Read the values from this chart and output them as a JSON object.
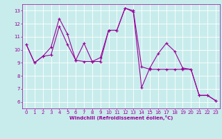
{
  "title": "",
  "xlabel": "Windchill (Refroidissement éolien,°C)",
  "ylabel": "",
  "background_color": "#c8ecec",
  "grid_color": "#b0d8d8",
  "line_color": "#990099",
  "marker": "+",
  "linewidth": 0.8,
  "markersize": 3.5,
  "markeredgewidth": 0.8,
  "xlim": [
    -0.5,
    23.5
  ],
  "ylim": [
    5.5,
    13.5
  ],
  "xticks": [
    0,
    1,
    2,
    3,
    4,
    5,
    6,
    7,
    8,
    9,
    10,
    11,
    12,
    13,
    14,
    15,
    16,
    17,
    18,
    19,
    20,
    21,
    22,
    23
  ],
  "yticks": [
    6,
    7,
    8,
    9,
    10,
    11,
    12,
    13
  ],
  "series1_x": [
    0,
    1,
    2,
    3,
    4,
    5,
    6,
    7,
    8,
    9,
    10,
    11,
    12,
    13,
    14,
    15,
    16,
    17,
    18,
    19,
    20,
    21,
    22,
    23
  ],
  "series1_y": [
    10.4,
    9.0,
    9.5,
    10.2,
    12.4,
    11.2,
    9.2,
    9.1,
    9.1,
    9.1,
    11.5,
    11.5,
    13.2,
    13.0,
    8.7,
    8.5,
    8.5,
    8.5,
    8.5,
    8.5,
    8.5,
    6.5,
    6.5,
    6.1
  ],
  "series2_x": [
    0,
    1,
    2,
    3,
    4,
    5,
    6,
    7,
    8,
    9,
    10,
    11,
    12,
    13,
    14,
    15,
    16,
    17,
    18,
    19,
    20,
    21,
    22,
    23
  ],
  "series2_y": [
    10.4,
    9.0,
    9.5,
    9.6,
    11.8,
    10.4,
    9.2,
    10.5,
    9.1,
    9.4,
    11.5,
    11.5,
    13.2,
    12.9,
    7.1,
    8.6,
    9.7,
    10.5,
    9.9,
    8.6,
    8.5,
    6.5,
    6.5,
    6.1
  ],
  "xlabel_fontsize": 5.0,
  "tick_labelsize": 5.0,
  "tick_color": "#990099",
  "spine_color": "#990099"
}
